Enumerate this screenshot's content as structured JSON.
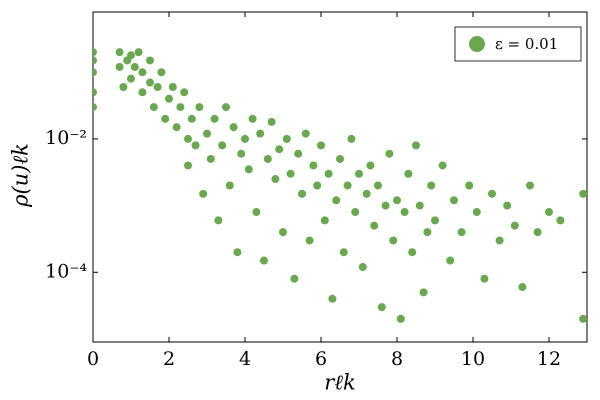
{
  "chart_data": {
    "type": "scatter",
    "xlabel": "rℓk",
    "ylabel": "ρ(u)ℓk",
    "x": [
      0,
      0,
      0,
      0,
      0,
      0.7,
      0.7,
      0.8,
      0.9,
      1.0,
      1.0,
      1.1,
      1.2,
      1.3,
      1.3,
      1.5,
      1.5,
      1.6,
      1.7,
      1.8,
      1.9,
      2.0,
      2.1,
      2.2,
      2.3,
      2.4,
      2.5,
      2.5,
      2.6,
      2.7,
      2.8,
      2.9,
      3.0,
      3.1,
      3.2,
      3.3,
      3.4,
      3.5,
      3.6,
      3.7,
      3.8,
      3.9,
      4.0,
      4.1,
      4.2,
      4.3,
      4.4,
      4.5,
      4.6,
      4.7,
      4.8,
      4.9,
      5.0,
      5.1,
      5.2,
      5.3,
      5.4,
      5.5,
      5.6,
      5.7,
      5.8,
      5.9,
      6.0,
      6.1,
      6.2,
      6.3,
      6.4,
      6.5,
      6.6,
      6.7,
      6.8,
      6.9,
      7.0,
      7.1,
      7.2,
      7.3,
      7.4,
      7.5,
      7.6,
      7.7,
      7.8,
      7.9,
      8.0,
      8.1,
      8.2,
      8.3,
      8.4,
      8.5,
      8.6,
      8.7,
      8.8,
      8.9,
      9.0,
      9.2,
      9.4,
      9.5,
      9.7,
      9.9,
      10.1,
      10.3,
      10.5,
      10.7,
      10.9,
      11.1,
      11.3,
      11.5,
      11.7,
      12.0,
      12.3,
      12.9,
      12.9
    ],
    "series": [
      {
        "name": "ε = 0.01",
        "color": "#6aa84f",
        "values": [
          0.2,
          0.1,
          0.05,
          0.15,
          0.03,
          0.2,
          0.12,
          0.06,
          0.15,
          0.18,
          0.08,
          0.12,
          0.2,
          0.05,
          0.1,
          0.07,
          0.15,
          0.03,
          0.06,
          0.1,
          0.02,
          0.04,
          0.06,
          0.015,
          0.03,
          0.05,
          0.01,
          0.004,
          0.02,
          0.008,
          0.03,
          0.0015,
          0.012,
          0.005,
          0.02,
          0.0006,
          0.008,
          0.03,
          0.002,
          0.015,
          0.0002,
          0.006,
          0.01,
          0.0035,
          0.02,
          0.0008,
          0.012,
          0.00015,
          0.005,
          0.018,
          0.0025,
          0.007,
          0.0004,
          0.01,
          0.003,
          8e-05,
          0.006,
          0.0015,
          0.012,
          0.0003,
          0.004,
          0.002,
          0.008,
          0.0006,
          0.003,
          4e-05,
          0.0012,
          0.005,
          0.0002,
          0.002,
          0.01,
          0.0008,
          0.003,
          0.00012,
          0.0015,
          0.004,
          0.0005,
          0.002,
          3e-05,
          0.001,
          0.006,
          0.0003,
          0.0012,
          2e-05,
          0.0008,
          0.003,
          0.0002,
          0.008,
          0.001,
          5e-05,
          0.0004,
          0.002,
          0.0006,
          0.004,
          0.00015,
          0.0012,
          0.0004,
          0.002,
          0.0008,
          8e-05,
          0.0015,
          0.0003,
          0.001,
          0.0005,
          6e-05,
          0.002,
          0.0004,
          0.0008,
          0.0006,
          0.0015,
          2e-05
        ]
      }
    ],
    "xlim": [
      0,
      13
    ],
    "xticks": [
      0,
      2,
      4,
      6,
      8,
      10,
      12
    ],
    "ylim": [
      9e-06,
      0.8
    ],
    "yscale": "log",
    "yticks": [
      {
        "value": 0.0001,
        "label": "10⁻⁴"
      },
      {
        "value": 0.01,
        "label": "10⁻²"
      }
    ],
    "legend": "upper right"
  }
}
